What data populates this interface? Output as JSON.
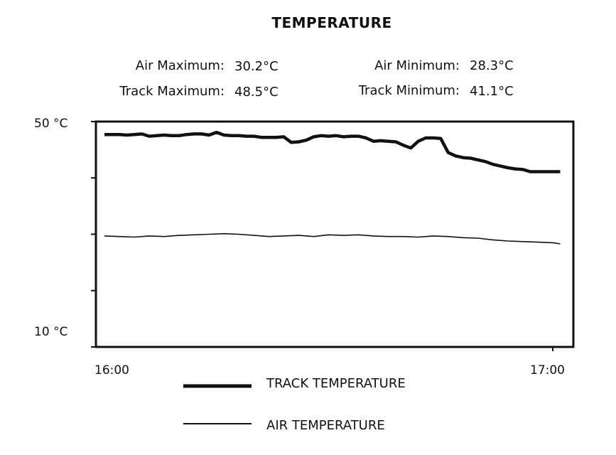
{
  "chart_data": {
    "type": "line",
    "title": "TEMPERATURE",
    "stats": {
      "air_max_label": "Air Maximum:",
      "air_max_value": "30.2°C",
      "air_min_label": "Air Minimum:",
      "air_min_value": "28.3°C",
      "track_max_label": "Track Maximum:",
      "track_max_value": "48.5°C",
      "track_min_label": "Track Minimum:",
      "track_min_value": "41.1°C"
    },
    "y_top_label": "50 °C",
    "y_bottom_label": "10 °C",
    "x_start_label": "16:00",
    "x_end_label": "17:00",
    "ylim": [
      10,
      50
    ],
    "xlim_minutes": [
      0,
      60
    ],
    "series": [
      {
        "name": "TRACK TEMPERATURE",
        "x": [
          0,
          1,
          2,
          3,
          4,
          5,
          6,
          7,
          8,
          9,
          10,
          11,
          12,
          13,
          14,
          15,
          16,
          17,
          18,
          19,
          20,
          21,
          22,
          23,
          24,
          25,
          26,
          27,
          28,
          29,
          30,
          31,
          32,
          33,
          34,
          35,
          36,
          37,
          38,
          39,
          40,
          41,
          42,
          43,
          44,
          45,
          46,
          47,
          48,
          49,
          50,
          51,
          52,
          53,
          54,
          55,
          56,
          57,
          58,
          59,
          60,
          61
        ],
        "values": [
          47.7,
          47.7,
          47.7,
          47.6,
          47.7,
          47.8,
          47.4,
          47.5,
          47.6,
          47.5,
          47.5,
          47.7,
          47.8,
          47.8,
          47.6,
          48.1,
          47.6,
          47.5,
          47.5,
          47.4,
          47.4,
          47.2,
          47.2,
          47.2,
          47.3,
          46.3,
          46.4,
          46.7,
          47.3,
          47.5,
          47.4,
          47.5,
          47.3,
          47.4,
          47.4,
          47.1,
          46.5,
          46.6,
          46.5,
          46.4,
          45.8,
          45.3,
          46.5,
          47.1,
          47.1,
          47.0,
          44.5,
          43.9,
          43.6,
          43.5,
          43.2,
          42.9,
          42.4,
          42.1,
          41.8,
          41.6,
          41.5,
          41.1,
          41.1,
          41.1,
          41.1,
          41.1
        ]
      },
      {
        "name": "AIR TEMPERATURE",
        "x": [
          0,
          2,
          4,
          6,
          8,
          10,
          12,
          14,
          16,
          18,
          20,
          22,
          24,
          26,
          28,
          30,
          32,
          34,
          36,
          38,
          40,
          42,
          44,
          46,
          48,
          50,
          52,
          54,
          56,
          58,
          60,
          61
        ],
        "values": [
          29.7,
          29.6,
          29.5,
          29.7,
          29.6,
          29.8,
          29.9,
          30.0,
          30.1,
          30.0,
          29.8,
          29.6,
          29.7,
          29.8,
          29.6,
          29.9,
          29.8,
          29.9,
          29.7,
          29.6,
          29.6,
          29.5,
          29.7,
          29.6,
          29.4,
          29.3,
          29.0,
          28.8,
          28.7,
          28.6,
          28.5,
          28.3
        ]
      }
    ]
  }
}
